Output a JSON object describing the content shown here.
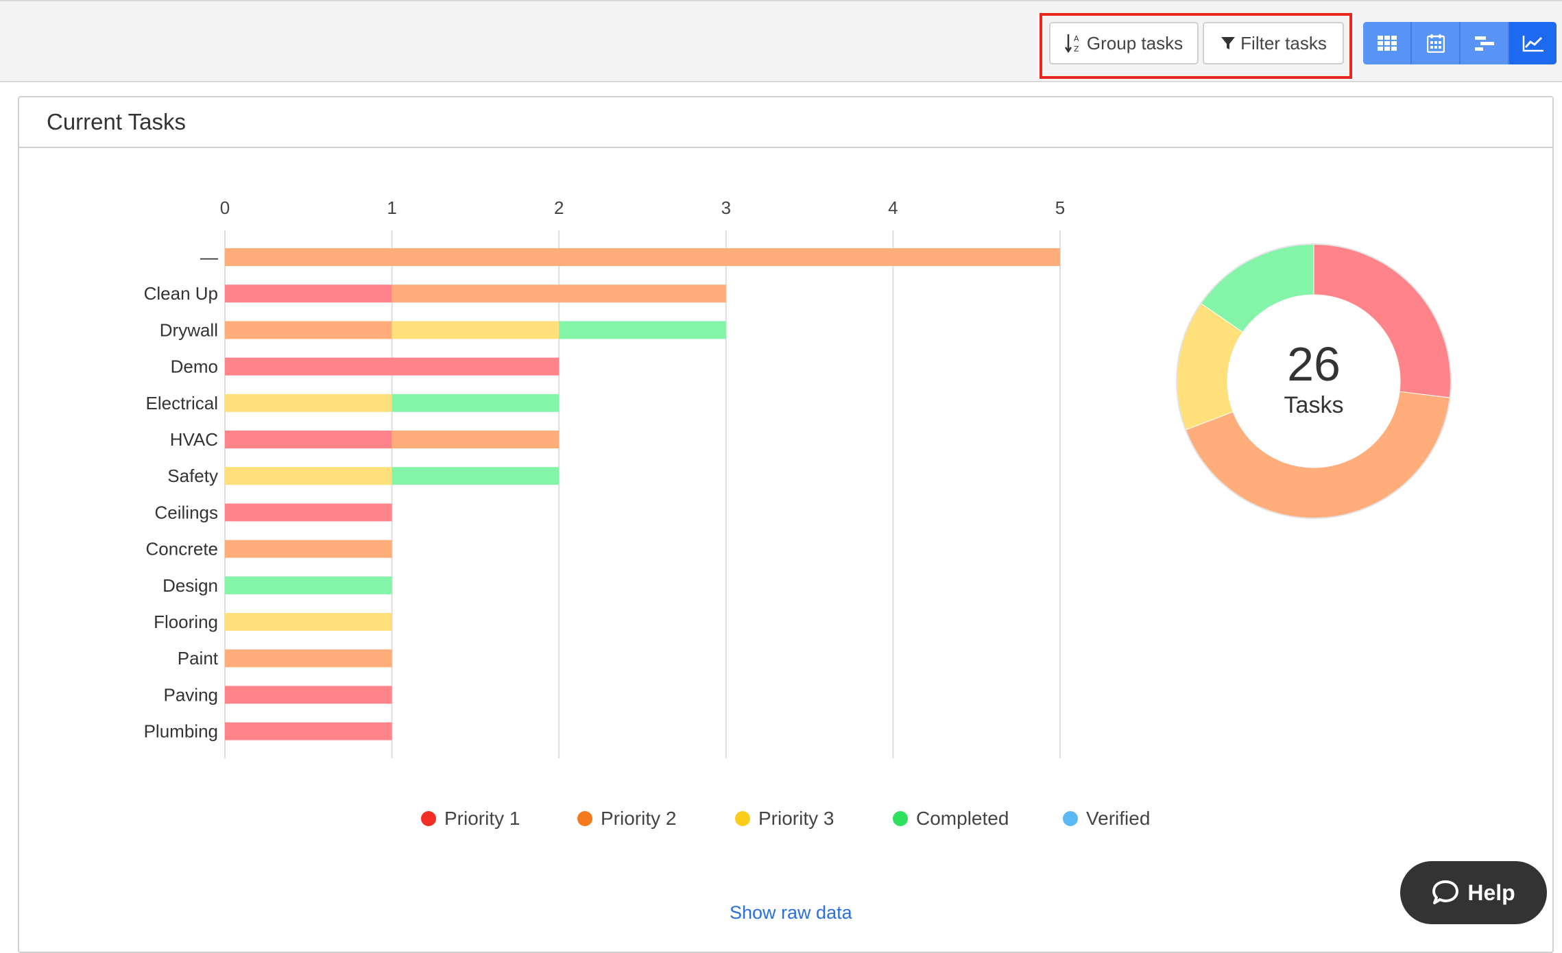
{
  "toolbar": {
    "group_label": "Group tasks",
    "filter_label": "Filter tasks",
    "views": [
      {
        "name": "grid-view",
        "icon": "grid-icon"
      },
      {
        "name": "calendar-view",
        "icon": "calendar-icon"
      },
      {
        "name": "gantt-view",
        "icon": "gantt-icon"
      },
      {
        "name": "chart-view",
        "icon": "line-chart-icon",
        "active": true
      }
    ]
  },
  "panel": {
    "title": "Current Tasks"
  },
  "colors": {
    "priority1": "#ff848a",
    "priority2": "#ffad7a",
    "priority3": "#ffe07a",
    "completed": "#84f4a8",
    "verified": "#5ab8f5"
  },
  "chart_data": {
    "type": "bar",
    "orientation": "horizontal",
    "stacked": true,
    "xlim": [
      0,
      5
    ],
    "xticks": [
      "0",
      "1",
      "2",
      "3",
      "4",
      "5"
    ],
    "categories": [
      "—",
      "Clean Up",
      "Drywall",
      "Demo",
      "Electrical",
      "HVAC",
      "Safety",
      "Ceilings",
      "Concrete",
      "Design",
      "Flooring",
      "Paint",
      "Paving",
      "Plumbing"
    ],
    "series": [
      {
        "name": "Priority 1",
        "color": "#ff848a",
        "values": [
          0,
          1,
          0,
          2,
          0,
          1,
          0,
          1,
          0,
          0,
          0,
          0,
          1,
          1
        ]
      },
      {
        "name": "Priority 2",
        "color": "#ffad7a",
        "values": [
          5,
          2,
          1,
          0,
          0,
          1,
          0,
          0,
          1,
          0,
          0,
          1,
          0,
          0
        ]
      },
      {
        "name": "Priority 3",
        "color": "#ffe07a",
        "values": [
          0,
          0,
          1,
          0,
          1,
          0,
          1,
          0,
          0,
          0,
          1,
          0,
          0,
          0
        ]
      },
      {
        "name": "Completed",
        "color": "#84f4a8",
        "values": [
          0,
          0,
          1,
          0,
          1,
          0,
          1,
          0,
          0,
          1,
          0,
          0,
          0,
          0
        ]
      },
      {
        "name": "Verified",
        "color": "#5ab8f5",
        "values": [
          0,
          0,
          0,
          0,
          0,
          0,
          0,
          0,
          0,
          0,
          0,
          0,
          0,
          0
        ]
      }
    ],
    "legend": [
      {
        "label": "Priority 1",
        "color": "#f22d24"
      },
      {
        "label": "Priority 2",
        "color": "#f57a1e"
      },
      {
        "label": "Priority 3",
        "color": "#fbcd1a"
      },
      {
        "label": "Completed",
        "color": "#2fe05e"
      },
      {
        "label": "Verified",
        "color": "#5ab8f5"
      }
    ],
    "donut": {
      "total": "26",
      "total_label": "Tasks",
      "slices": [
        {
          "name": "Priority 1",
          "value": 7,
          "color": "#ff848a"
        },
        {
          "name": "Priority 2",
          "value": 11,
          "color": "#ffad7a"
        },
        {
          "name": "Priority 3",
          "value": 4,
          "color": "#ffe07a"
        },
        {
          "name": "Completed",
          "value": 4,
          "color": "#84f4a8"
        }
      ]
    }
  },
  "footer": {
    "raw_data_label": "Show raw data",
    "help_label": "Help"
  }
}
